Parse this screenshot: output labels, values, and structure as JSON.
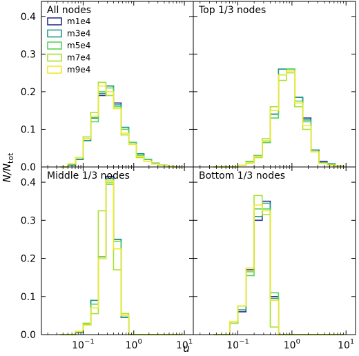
{
  "figure": {
    "xlabel": "u",
    "ylabel_main": "N/N",
    "ylabel_sub": "tot"
  },
  "chart_data": {
    "type": "histogram-step",
    "x_scale": "log",
    "x_range": [
      0.015,
      15
    ],
    "y_range": [
      0,
      0.44
    ],
    "x_ticks": [
      {
        "value": 0.1,
        "label_base": "10",
        "label_exp": "−1"
      },
      {
        "value": 1,
        "label_base": "10",
        "label_exp": "0"
      },
      {
        "value": 10,
        "label_base": "10",
        "label_exp": "1"
      }
    ],
    "y_ticks": [
      {
        "value": 0.0,
        "label": "0.0"
      },
      {
        "value": 0.1,
        "label": "0.1"
      },
      {
        "value": 0.2,
        "label": "0.2"
      },
      {
        "value": 0.3,
        "label": "0.3"
      },
      {
        "value": 0.4,
        "label": "0.4"
      }
    ],
    "bin_edges": [
      0.0355,
      0.0501,
      0.0708,
      0.1,
      0.1413,
      0.1995,
      0.2818,
      0.3981,
      0.5623,
      0.7943,
      1.122,
      1.585,
      2.239,
      3.162,
      4.467,
      6.31,
      8.913
    ],
    "series": [
      {
        "name": "m1e4",
        "color": "#2e2f8c"
      },
      {
        "name": "m3e4",
        "color": "#1f9e84"
      },
      {
        "name": "m5e4",
        "color": "#55d455"
      },
      {
        "name": "m7e4",
        "color": "#a8e22a"
      },
      {
        "name": "m9e4",
        "color": "#f0ea2a"
      }
    ],
    "panels": [
      {
        "title": "All nodes",
        "legend": "top-left",
        "values": [
          [
            0,
            0.005,
            0.02,
            0.07,
            0.13,
            0.19,
            0.215,
            0.17,
            0.105,
            0.065,
            0.035,
            0.02,
            0.01,
            0.005,
            0.002,
            0
          ],
          [
            0,
            0.005,
            0.02,
            0.07,
            0.13,
            0.195,
            0.215,
            0.165,
            0.105,
            0.065,
            0.035,
            0.02,
            0.01,
            0.005,
            0.002,
            0
          ],
          [
            0,
            0.008,
            0.025,
            0.075,
            0.12,
            0.2,
            0.21,
            0.16,
            0.1,
            0.065,
            0.03,
            0.02,
            0.01,
            0.005,
            0.002,
            0
          ],
          [
            0,
            0.008,
            0.025,
            0.08,
            0.145,
            0.225,
            0.19,
            0.155,
            0.085,
            0.06,
            0.025,
            0.015,
            0.008,
            0.004,
            0.002,
            0
          ],
          [
            0,
            0.008,
            0.025,
            0.075,
            0.135,
            0.215,
            0.2,
            0.155,
            0.09,
            0.06,
            0.028,
            0.015,
            0.008,
            0.004,
            0.002,
            0
          ]
        ]
      },
      {
        "title": "Top 1/3 nodes",
        "legend": null,
        "values": [
          [
            0,
            0,
            0,
            0.005,
            0.015,
            0.03,
            0.065,
            0.14,
            0.26,
            0.26,
            0.185,
            0.13,
            0.045,
            0.015,
            0.008,
            0.003
          ],
          [
            0,
            0,
            0,
            0.005,
            0.015,
            0.03,
            0.065,
            0.14,
            0.26,
            0.26,
            0.185,
            0.125,
            0.045,
            0.012,
            0.008,
            0.003
          ],
          [
            0,
            0,
            0,
            0.005,
            0.015,
            0.03,
            0.065,
            0.13,
            0.245,
            0.26,
            0.175,
            0.12,
            0.04,
            0.01,
            0.006,
            0.003
          ],
          [
            0,
            0,
            0,
            0.005,
            0.01,
            0.025,
            0.075,
            0.16,
            0.23,
            0.25,
            0.16,
            0.1,
            0.04,
            0.01,
            0.005,
            0.002
          ],
          [
            0,
            0,
            0,
            0.005,
            0.012,
            0.028,
            0.07,
            0.15,
            0.245,
            0.255,
            0.17,
            0.11,
            0.04,
            0.01,
            0.005,
            0.002
          ]
        ]
      },
      {
        "title": "Middle 1/3 nodes",
        "legend": null,
        "values": [
          [
            0,
            0,
            0.005,
            0.025,
            0.09,
            0.2,
            0.415,
            0.25,
            0.045,
            0,
            0,
            0,
            0,
            0,
            0,
            0
          ],
          [
            0,
            0,
            0.005,
            0.025,
            0.09,
            0.205,
            0.41,
            0.25,
            0.045,
            0,
            0,
            0,
            0,
            0,
            0,
            0
          ],
          [
            0,
            0,
            0.008,
            0.028,
            0.08,
            0.205,
            0.395,
            0.245,
            0.05,
            0,
            0,
            0,
            0,
            0,
            0,
            0
          ],
          [
            0,
            0,
            0.008,
            0.03,
            0.055,
            0.325,
            0.4,
            0.17,
            0.055,
            0,
            0,
            0,
            0,
            0,
            0,
            0
          ],
          [
            0,
            0,
            0.008,
            0.025,
            0.07,
            0.2,
            0.405,
            0.225,
            0.05,
            0,
            0,
            0,
            0,
            0,
            0,
            0
          ]
        ]
      },
      {
        "title": "Bottom 1/3 nodes",
        "legend": null,
        "values": [
          [
            0,
            0,
            0.03,
            0.06,
            0.17,
            0.3,
            0.35,
            0.1,
            0,
            0,
            0,
            0,
            0,
            0,
            0,
            0
          ],
          [
            0,
            0,
            0.03,
            0.065,
            0.165,
            0.31,
            0.345,
            0.095,
            0,
            0,
            0,
            0,
            0,
            0,
            0,
            0
          ],
          [
            0,
            0,
            0.03,
            0.075,
            0.155,
            0.33,
            0.33,
            0.11,
            0,
            0,
            0,
            0,
            0,
            0,
            0,
            0
          ],
          [
            0,
            0,
            0.03,
            0.075,
            0.165,
            0.365,
            0.315,
            0.02,
            0,
            0,
            0,
            0,
            0,
            0,
            0,
            0
          ],
          [
            0,
            0,
            0.035,
            0.075,
            0.175,
            0.34,
            0.325,
            0.09,
            0,
            0,
            0,
            0,
            0,
            0,
            0,
            0
          ]
        ]
      }
    ]
  }
}
